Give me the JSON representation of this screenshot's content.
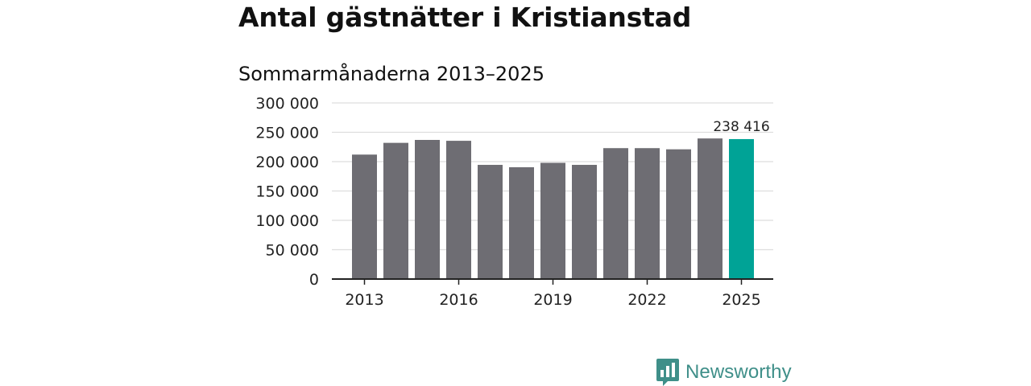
{
  "title": "Antal gästnätter i Kristianstad",
  "subtitle": "Sommarmånaderna 2013–2025",
  "chart_data": {
    "type": "bar",
    "categories": [
      "2013",
      "2014",
      "2015",
      "2016",
      "2017",
      "2018",
      "2019",
      "2020",
      "2021",
      "2022",
      "2023",
      "2024",
      "2025"
    ],
    "values": [
      212000,
      232000,
      237000,
      235500,
      194500,
      190500,
      198000,
      194500,
      223000,
      223000,
      221000,
      239500,
      238416
    ],
    "x_tick_labels": [
      "2013",
      "2016",
      "2019",
      "2022",
      "2025"
    ],
    "y_ticks": [
      0,
      50000,
      100000,
      150000,
      200000,
      250000,
      300000
    ],
    "y_tick_labels": [
      "0",
      "50 000",
      "100 000",
      "150 000",
      "200 000",
      "250 000",
      "300 000"
    ],
    "ylim": [
      0,
      300000
    ],
    "grid": true,
    "highlight_index": 12,
    "annotation": "238 416",
    "colors": {
      "bar": "#6e6d73",
      "highlight": "#00a396",
      "grid": "#dddddd",
      "axis": "#222222",
      "text": "#222222"
    }
  },
  "brand": {
    "name": "Newsworthy",
    "icon": "newsworthy-logo-icon",
    "color": "#3f8f89"
  }
}
